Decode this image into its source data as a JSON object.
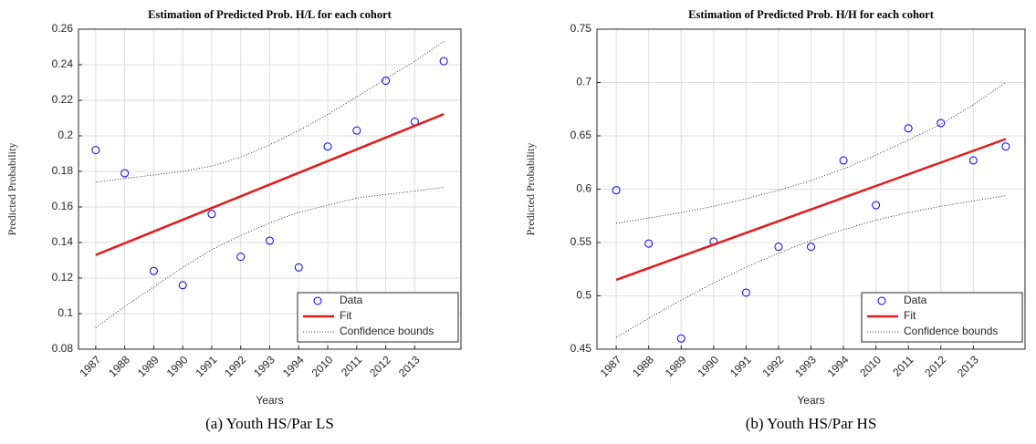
{
  "chart_data": [
    {
      "type": "scatter-fit",
      "title": "Estimation of Predicted Prob. H/L for each cohort",
      "xlabel": "Years",
      "ylabel": "Predicted Probability",
      "caption": "(a) Youth HS/Par LS",
      "categories": [
        "1987",
        "1988",
        "1989",
        "1990",
        "1991",
        "1992",
        "1993",
        "1994",
        "2010",
        "2011",
        "2012",
        "2013",
        null
      ],
      "ylim": [
        0.08,
        0.26
      ],
      "yticks": [
        0.08,
        0.1,
        0.12,
        0.14,
        0.16,
        0.18,
        0.2,
        0.22,
        0.24,
        0.26
      ],
      "grid": true,
      "legend": "lower right",
      "series": [
        {
          "name": "Data",
          "color": "#0000ff",
          "values": [
            0.192,
            0.179,
            0.124,
            0.116,
            0.156,
            0.132,
            0.141,
            0.126,
            0.194,
            0.203,
            0.231,
            0.208,
            0.242
          ]
        },
        {
          "name": "Fit",
          "color": "#e41a1c",
          "values": [
            0.133,
            0.1396,
            0.1462,
            0.1528,
            0.1594,
            0.166,
            0.1726,
            0.1792,
            0.1858,
            0.1924,
            0.199,
            0.2056,
            0.2122
          ]
        },
        {
          "name": "Confidence bounds",
          "color": "#000000",
          "upper": [
            0.174,
            0.176,
            0.178,
            0.18,
            0.183,
            0.188,
            0.195,
            0.203,
            0.212,
            0.222,
            0.232,
            0.242,
            0.253
          ],
          "lower": [
            0.092,
            0.104,
            0.115,
            0.126,
            0.136,
            0.144,
            0.151,
            0.157,
            0.161,
            0.165,
            0.167,
            0.169,
            0.171
          ]
        }
      ]
    },
    {
      "type": "scatter-fit",
      "title": "Estimation of Predicted Prob. H/H for each cohort",
      "xlabel": "Years",
      "ylabel": "Predicted Probability",
      "caption": "(b) Youth HS/Par HS",
      "categories": [
        "1987",
        "1988",
        "1989",
        "1990",
        "1991",
        "1992",
        "1993",
        "1994",
        "2010",
        "2011",
        "2012",
        "2013",
        null
      ],
      "ylim": [
        0.45,
        0.75
      ],
      "yticks": [
        0.45,
        0.5,
        0.55,
        0.6,
        0.65,
        0.7,
        0.75
      ],
      "grid": true,
      "legend": "lower right",
      "series": [
        {
          "name": "Data",
          "color": "#0000ff",
          "values": [
            0.599,
            0.549,
            0.46,
            0.551,
            0.503,
            0.546,
            0.546,
            0.627,
            0.585,
            0.657,
            0.662,
            0.627,
            0.64
          ]
        },
        {
          "name": "Fit",
          "color": "#e41a1c",
          "values": [
            0.515,
            0.526,
            0.537,
            0.548,
            0.559,
            0.57,
            0.581,
            0.592,
            0.603,
            0.614,
            0.625,
            0.636,
            0.647
          ]
        },
        {
          "name": "Confidence bounds",
          "color": "#000000",
          "upper": [
            0.568,
            0.573,
            0.578,
            0.584,
            0.591,
            0.599,
            0.608,
            0.619,
            0.632,
            0.646,
            0.661,
            0.679,
            0.7
          ],
          "lower": [
            0.461,
            0.479,
            0.496,
            0.512,
            0.527,
            0.54,
            0.552,
            0.562,
            0.571,
            0.578,
            0.584,
            0.589,
            0.594
          ]
        }
      ]
    }
  ]
}
